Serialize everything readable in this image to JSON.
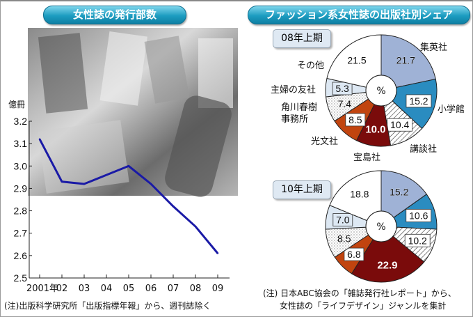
{
  "left_title": "女性誌の発行部数",
  "right_title": "ファッション系女性誌の出版社別シェア",
  "left_note": "(注)出版科学研究所「出版指標年報」から、週刊誌除く",
  "right_note": [
    "(注) 日本ABC協会の「雑誌発行社レポート」から、",
    "女性誌の「ライフデザイン」ジャンルを集計"
  ],
  "chart_data": [
    {
      "type": "line",
      "title": "女性誌の発行部数",
      "ylabel": "億冊",
      "ylim": [
        2.5,
        3.2
      ],
      "yticks": [
        "3.2",
        "3.1",
        "3.0",
        "2.9",
        "2.8",
        "2.7",
        "2.6",
        "2.5"
      ],
      "categories": [
        "2001年",
        "02",
        "03",
        "04",
        "05",
        "06",
        "07",
        "08",
        "09"
      ],
      "values": [
        3.12,
        2.93,
        2.92,
        2.96,
        3.0,
        2.92,
        2.82,
        2.73,
        2.61
      ],
      "line_color": "#1a1aa6",
      "grid": false
    },
    {
      "type": "pie",
      "title": "08年上期",
      "center_label": "%",
      "categories": [
        "集英社",
        "小学館",
        "講談社",
        "宝島社",
        "光文社",
        "角川春樹事務所",
        "主婦の友社",
        "その他"
      ],
      "values": [
        21.7,
        15.2,
        10.4,
        10.0,
        8.5,
        7.4,
        5.3,
        21.5
      ],
      "value_labels": [
        "21.7",
        "15.2",
        "10.4",
        "10.0",
        "8.5",
        "7.4",
        "5.3",
        "21.5"
      ],
      "colors": [
        "#9fb2d6",
        "#2a8cc0",
        "hatch",
        "#7a0b0b",
        "#c1440f",
        "dots",
        "#dde8f3",
        "#ffffff"
      ]
    },
    {
      "type": "pie",
      "title": "10年上期",
      "center_label": "%",
      "categories": [
        "集英社",
        "小学館",
        "講談社",
        "宝島社",
        "光文社",
        "角川春樹事務所",
        "主婦の友社",
        "その他"
      ],
      "values": [
        15.2,
        10.6,
        10.2,
        22.9,
        6.8,
        8.5,
        7.0,
        18.8
      ],
      "value_labels": [
        "15.2",
        "10.6",
        "10.2",
        "22.9",
        "6.8",
        "8.5",
        "7.0",
        "18.8"
      ],
      "colors": [
        "#9fb2d6",
        "#2a8cc0",
        "hatch",
        "#7a0b0b",
        "#c1440f",
        "dots",
        "#dde8f3",
        "#ffffff"
      ]
    }
  ]
}
